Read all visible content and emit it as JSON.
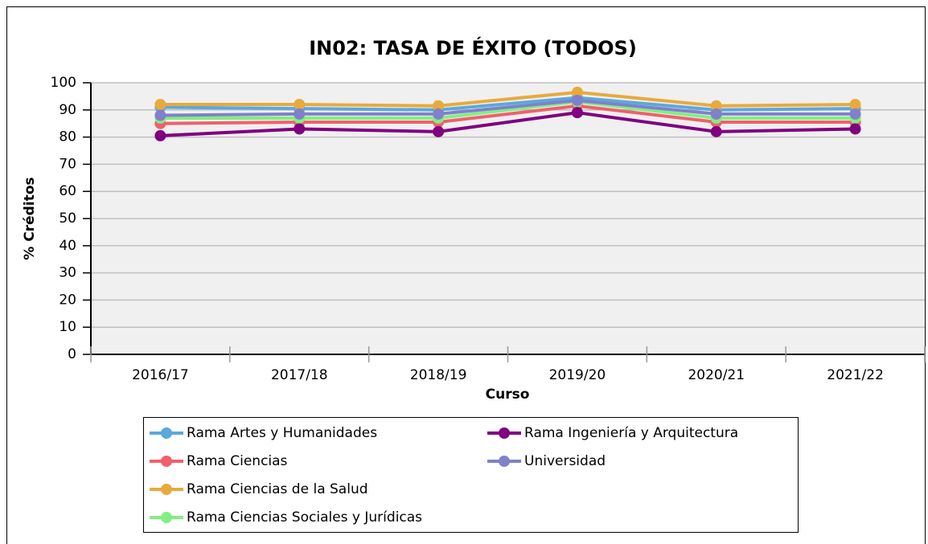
{
  "chart_data": {
    "type": "line",
    "title": "IN02: TASA DE ÉXITO (TODOS)",
    "x_label": "Curso",
    "y_label": "% Créditos",
    "categories": [
      "2016/17",
      "2017/18",
      "2018/19",
      "2019/20",
      "2020/21",
      "2021/22"
    ],
    "series": [
      {
        "name": "Rama Artes y Humanidades",
        "color": "#5ba8dc",
        "values": [
          91,
          90.5,
          90,
          94.5,
          90,
          90.5
        ]
      },
      {
        "name": "Rama Ciencias",
        "color": "#f0606a",
        "values": [
          85,
          85.5,
          85.5,
          91.5,
          85.5,
          85.5
        ]
      },
      {
        "name": "Rama Ciencias de la Salud",
        "color": "#e8aa3c",
        "values": [
          92,
          92,
          91.5,
          96.5,
          91.5,
          92
        ]
      },
      {
        "name": "Rama Ciencias Sociales y Jurídicas",
        "color": "#80f080",
        "values": [
          87,
          87,
          87,
          93,
          87,
          87
        ]
      },
      {
        "name": "Rama Ingeniería y Arquitectura",
        "color": "#800080",
        "values": [
          80.5,
          83,
          82,
          89,
          82,
          83
        ]
      },
      {
        "name": "Universidad",
        "color": "#8080cc",
        "values": [
          88,
          88.5,
          88.5,
          93.5,
          88.5,
          88.5
        ]
      }
    ],
    "ylim": [
      0,
      100
    ],
    "yticks": [
      0,
      10,
      20,
      30,
      40,
      50,
      60,
      70,
      80,
      90,
      100
    ],
    "grid": true
  }
}
